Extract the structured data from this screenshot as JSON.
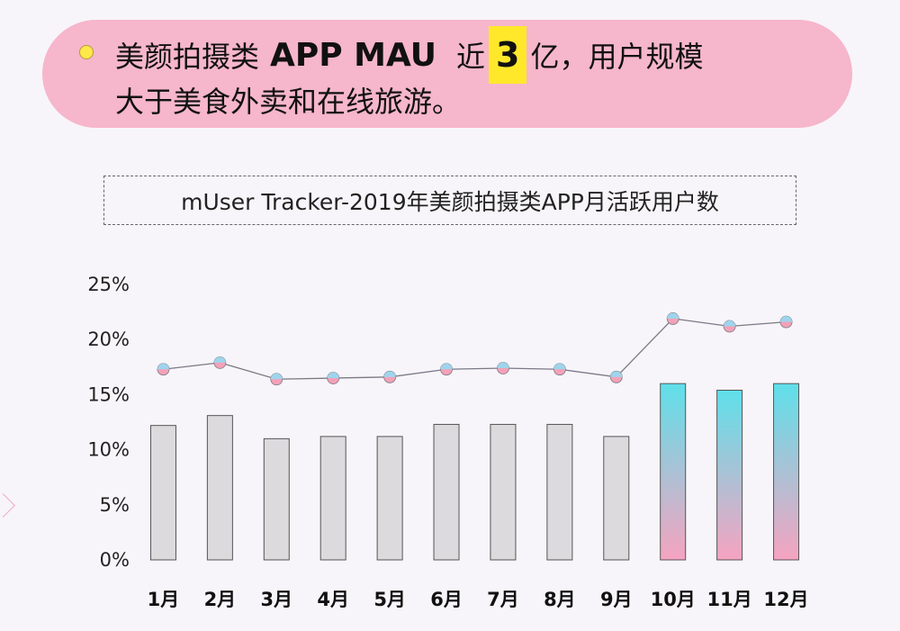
{
  "headline": {
    "line1_prefix": "美颜拍摄类",
    "line1_app": "APP MAU",
    "line1_near": "近",
    "line1_number": "3",
    "line1_suffix": "亿，用户规模",
    "line2": "大于美食外卖和在线旅游。"
  },
  "colors": {
    "headline_bg": "#f6b6cb",
    "highlight": "#ffe82a",
    "bar_gray": "#dcdadd",
    "bar_gradient_top": "#5ee0ea",
    "bar_gradient_bottom": "#f6a3c0",
    "line": "#7a7a86",
    "marker_top": "#9fd4ec",
    "marker_bottom": "#f4a1b8"
  },
  "chart_data": {
    "type": "bar",
    "title": "mUser Tracker-2019年美颜拍摄类APP月活跃用户数",
    "categories": [
      "1月",
      "2月",
      "3月",
      "4月",
      "5月",
      "6月",
      "7月",
      "8月",
      "9月",
      "10月",
      "11月",
      "12月"
    ],
    "ylim": [
      0,
      25
    ],
    "yticks": [
      0,
      5,
      10,
      15,
      20,
      25
    ],
    "ytick_labels": [
      "0%",
      "5%",
      "10%",
      "15%",
      "20%",
      "25%"
    ],
    "series": [
      {
        "name": "bars",
        "type": "bar",
        "values": [
          12.2,
          13.1,
          11.0,
          11.2,
          11.2,
          12.3,
          12.3,
          12.3,
          11.2,
          16.0,
          15.4,
          16.0
        ]
      },
      {
        "name": "line",
        "type": "line",
        "values": [
          17.3,
          17.9,
          16.4,
          16.5,
          16.6,
          17.3,
          17.4,
          17.3,
          16.6,
          21.9,
          21.2,
          21.6
        ]
      }
    ],
    "highlighted_bars": [
      9,
      10,
      11
    ],
    "grid": false,
    "legend": "none"
  }
}
